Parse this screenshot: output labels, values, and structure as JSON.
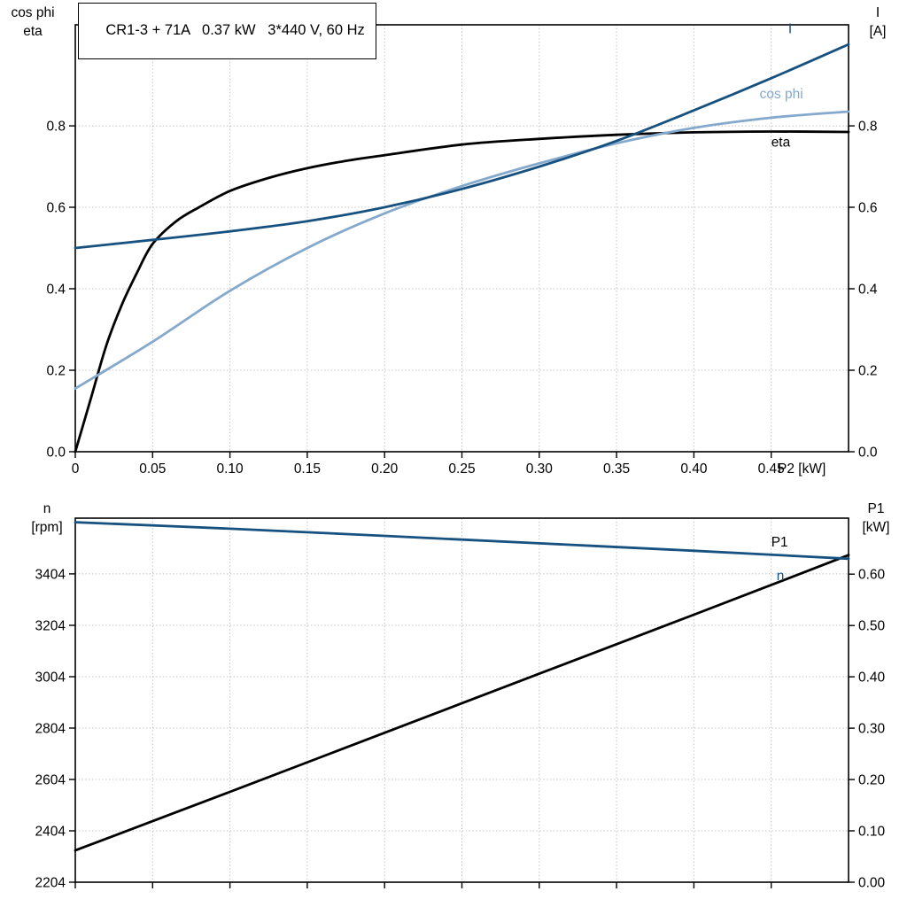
{
  "corner_labels": {
    "top_left": [
      "cos phi",
      "eta"
    ],
    "top_right": [
      "I",
      "[A]"
    ],
    "bottom_left": [
      "n",
      "[rpm]"
    ],
    "bottom_right": [
      "P1",
      "[kW]"
    ]
  },
  "colors": {
    "dark_blue": "#17517f",
    "light_blue": "#84a9cc",
    "black": "#000000",
    "grid": "#c0c0c0"
  },
  "chart_data": [
    {
      "type": "line",
      "title": "CR1-3 + 71A   0.37 kW   3*440 V, 60 Hz",
      "xlabel": "P2 [kW]",
      "xlim": [
        0,
        0.5
      ],
      "x_ticks": [
        0,
        0.05,
        0.1,
        0.15,
        0.2,
        0.25,
        0.3,
        0.35,
        0.4,
        0.45
      ],
      "x_tick_labels": [
        "0",
        "0.05",
        "0.10",
        "0.15",
        "0.20",
        "0.25",
        "0.30",
        "0.35",
        "0.40",
        "0.45"
      ],
      "grid": true,
      "left_axis": {
        "range": [
          0,
          1.048
        ],
        "ticks": [
          0.8,
          0.6,
          0.4,
          0.2,
          0.0
        ],
        "labels": [
          "0.8",
          "0.6",
          "0.4",
          "0.2",
          "0.0"
        ]
      },
      "right_axis": {
        "range": [
          0,
          1.048
        ],
        "ticks": [
          0.8,
          0.6,
          0.4,
          0.2,
          0.0
        ],
        "labels": [
          "0.8",
          "0.6",
          "0.4",
          "0.2",
          "0.0"
        ]
      },
      "series": [
        {
          "name": "eta",
          "axis": "left",
          "color": "#000000",
          "x": [
            0,
            0.01,
            0.02,
            0.03,
            0.04,
            0.05,
            0.065,
            0.08,
            0.1,
            0.125,
            0.15,
            0.175,
            0.2,
            0.25,
            0.3,
            0.35,
            0.4,
            0.45,
            0.5
          ],
          "y": [
            0,
            0.13,
            0.26,
            0.36,
            0.44,
            0.51,
            0.565,
            0.6,
            0.64,
            0.672,
            0.696,
            0.714,
            0.728,
            0.754,
            0.768,
            0.778,
            0.784,
            0.786,
            0.785
          ],
          "label": {
            "fx": 0.9,
            "fy": 0.285
          }
        },
        {
          "name": "cos phi",
          "axis": "left",
          "color": "#84a9cc",
          "x": [
            0,
            0.05,
            0.1,
            0.15,
            0.2,
            0.25,
            0.3,
            0.35,
            0.4,
            0.45,
            0.5
          ],
          "y": [
            0.155,
            0.27,
            0.395,
            0.5,
            0.585,
            0.652,
            0.708,
            0.757,
            0.795,
            0.82,
            0.835
          ],
          "label": {
            "fx": 0.885,
            "fy": 0.172
          }
        },
        {
          "name": "I",
          "axis": "right",
          "color": "#17517f",
          "x": [
            0,
            0.05,
            0.1,
            0.15,
            0.2,
            0.25,
            0.3,
            0.35,
            0.4,
            0.45,
            0.5
          ],
          "y": [
            0.5,
            0.52,
            0.541,
            0.566,
            0.6,
            0.645,
            0.7,
            0.763,
            0.838,
            0.917,
            1.0
          ],
          "label": {
            "fx": 0.922,
            "fy": 0.02
          }
        }
      ]
    },
    {
      "type": "line",
      "title": "",
      "xlabel": "",
      "xlim": [
        0,
        0.5
      ],
      "x_ticks": [
        0,
        0.05,
        0.1,
        0.15,
        0.2,
        0.25,
        0.3,
        0.35,
        0.4,
        0.45
      ],
      "x_tick_labels": null,
      "grid": true,
      "left_axis": {
        "range": [
          2204,
          3621
        ],
        "ticks": [
          3404,
          3204,
          3004,
          2804,
          2604,
          2404,
          2204
        ],
        "labels": [
          "3404",
          "3204",
          "3004",
          "2804",
          "2604",
          "2404",
          "2204"
        ]
      },
      "right_axis": {
        "range": [
          0,
          0.709
        ],
        "ticks": [
          0.6,
          0.5,
          0.4,
          0.3,
          0.2,
          0.1,
          0.0
        ],
        "labels": [
          "0.60",
          "0.50",
          "0.40",
          "0.30",
          "0.20",
          "0.10",
          "0.00"
        ]
      },
      "series": [
        {
          "name": "P1",
          "axis": "right",
          "color": "#000000",
          "x": [
            0,
            0.1,
            0.2,
            0.3,
            0.4,
            0.5
          ],
          "y": [
            0.062,
            0.176,
            0.291,
            0.406,
            0.521,
            0.637
          ],
          "label": {
            "fx": 0.9,
            "fy": 0.078
          }
        },
        {
          "name": "n",
          "axis": "left",
          "color": "#17517f",
          "x": [
            0,
            0.1,
            0.2,
            0.3,
            0.4,
            0.5
          ],
          "y": [
            3605,
            3580,
            3552,
            3523,
            3494,
            3463
          ],
          "label": {
            "fx": 0.907,
            "fy": 0.17
          }
        }
      ]
    }
  ]
}
